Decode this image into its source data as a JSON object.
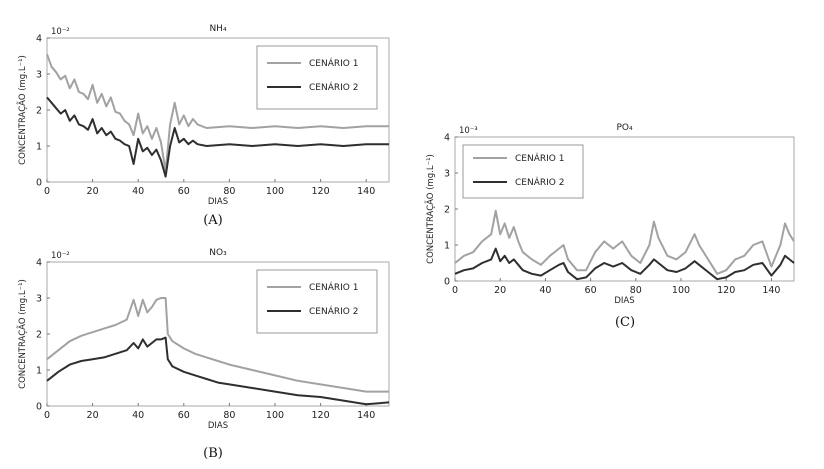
{
  "chart_data": [
    {
      "type": "line",
      "title": "NH₄",
      "caption": "(A)",
      "xlabel": "DIAS",
      "ylabel": "CONCENTRAÇÃO (mg.L⁻¹)",
      "multiplier": "10⁻²",
      "xlim": [
        0,
        150
      ],
      "ylim": [
        0,
        4
      ],
      "xticks": [
        "0",
        "20",
        "40",
        "60",
        "80",
        "100",
        "120",
        "140"
      ],
      "yticks": [
        "0",
        "1",
        "2",
        "3",
        "4"
      ],
      "legend": "top-right",
      "series": [
        {
          "name": "CENÁRIO 1",
          "color": "#a2a2a2",
          "points": [
            [
              0,
              3.55
            ],
            [
              2,
              3.2
            ],
            [
              4,
              3.05
            ],
            [
              6,
              2.85
            ],
            [
              8,
              2.95
            ],
            [
              10,
              2.6
            ],
            [
              12,
              2.85
            ],
            [
              14,
              2.5
            ],
            [
              16,
              2.45
            ],
            [
              18,
              2.3
            ],
            [
              20,
              2.7
            ],
            [
              22,
              2.2
            ],
            [
              24,
              2.45
            ],
            [
              26,
              2.1
            ],
            [
              28,
              2.35
            ],
            [
              30,
              1.95
            ],
            [
              32,
              1.9
            ],
            [
              34,
              1.7
            ],
            [
              36,
              1.6
            ],
            [
              38,
              1.3
            ],
            [
              40,
              1.9
            ],
            [
              42,
              1.35
            ],
            [
              44,
              1.55
            ],
            [
              46,
              1.2
            ],
            [
              48,
              1.5
            ],
            [
              50,
              1.1
            ],
            [
              52,
              0.3
            ],
            [
              54,
              1.6
            ],
            [
              56,
              2.2
            ],
            [
              58,
              1.6
            ],
            [
              60,
              1.85
            ],
            [
              62,
              1.55
            ],
            [
              64,
              1.75
            ],
            [
              66,
              1.6
            ],
            [
              70,
              1.5
            ],
            [
              80,
              1.55
            ],
            [
              90,
              1.5
            ],
            [
              100,
              1.55
            ],
            [
              110,
              1.5
            ],
            [
              120,
              1.55
            ],
            [
              130,
              1.5
            ],
            [
              140,
              1.55
            ],
            [
              150,
              1.55
            ]
          ]
        },
        {
          "name": "CENÁRIO 2",
          "color": "#2f2f2f",
          "points": [
            [
              0,
              2.35
            ],
            [
              2,
              2.2
            ],
            [
              4,
              2.05
            ],
            [
              6,
              1.9
            ],
            [
              8,
              2.0
            ],
            [
              10,
              1.7
            ],
            [
              12,
              1.85
            ],
            [
              14,
              1.6
            ],
            [
              16,
              1.55
            ],
            [
              18,
              1.45
            ],
            [
              20,
              1.75
            ],
            [
              22,
              1.35
            ],
            [
              24,
              1.5
            ],
            [
              26,
              1.3
            ],
            [
              28,
              1.4
            ],
            [
              30,
              1.2
            ],
            [
              32,
              1.15
            ],
            [
              34,
              1.05
            ],
            [
              36,
              1.0
            ],
            [
              38,
              0.5
            ],
            [
              40,
              1.2
            ],
            [
              42,
              0.85
            ],
            [
              44,
              0.95
            ],
            [
              46,
              0.75
            ],
            [
              48,
              0.9
            ],
            [
              50,
              0.6
            ],
            [
              52,
              0.15
            ],
            [
              54,
              1.0
            ],
            [
              56,
              1.5
            ],
            [
              58,
              1.1
            ],
            [
              60,
              1.2
            ],
            [
              62,
              1.05
            ],
            [
              64,
              1.15
            ],
            [
              66,
              1.05
            ],
            [
              70,
              1.0
            ],
            [
              80,
              1.05
            ],
            [
              90,
              1.0
            ],
            [
              100,
              1.05
            ],
            [
              110,
              1.0
            ],
            [
              120,
              1.05
            ],
            [
              130,
              1.0
            ],
            [
              140,
              1.05
            ],
            [
              150,
              1.05
            ]
          ]
        }
      ]
    },
    {
      "type": "line",
      "title": "NO₃",
      "caption": "(B)",
      "xlabel": "DIAS",
      "ylabel": "CONCENTRAÇÃO (mg.L⁻¹)",
      "multiplier": "10⁻²",
      "xlim": [
        0,
        150
      ],
      "ylim": [
        0,
        4
      ],
      "xticks": [
        "0",
        "20",
        "40",
        "60",
        "80",
        "100",
        "120",
        "140"
      ],
      "yticks": [
        "0",
        "1",
        "2",
        "3",
        "4"
      ],
      "legend": "top-right",
      "series": [
        {
          "name": "CENÁRIO 1",
          "color": "#a2a2a2",
          "points": [
            [
              0,
              1.3
            ],
            [
              5,
              1.55
            ],
            [
              10,
              1.8
            ],
            [
              15,
              1.95
            ],
            [
              20,
              2.05
            ],
            [
              25,
              2.15
            ],
            [
              30,
              2.25
            ],
            [
              35,
              2.4
            ],
            [
              38,
              2.95
            ],
            [
              40,
              2.5
            ],
            [
              42,
              2.95
            ],
            [
              44,
              2.6
            ],
            [
              46,
              2.75
            ],
            [
              48,
              2.95
            ],
            [
              50,
              3.0
            ],
            [
              52,
              3.0
            ],
            [
              53,
              2.0
            ],
            [
              55,
              1.8
            ],
            [
              60,
              1.6
            ],
            [
              65,
              1.45
            ],
            [
              70,
              1.35
            ],
            [
              75,
              1.25
            ],
            [
              80,
              1.15
            ],
            [
              90,
              1.0
            ],
            [
              100,
              0.85
            ],
            [
              110,
              0.7
            ],
            [
              120,
              0.6
            ],
            [
              130,
              0.5
            ],
            [
              140,
              0.4
            ],
            [
              150,
              0.4
            ]
          ]
        },
        {
          "name": "CENÁRIO 2",
          "color": "#2f2f2f",
          "points": [
            [
              0,
              0.7
            ],
            [
              5,
              0.95
            ],
            [
              10,
              1.15
            ],
            [
              15,
              1.25
            ],
            [
              20,
              1.3
            ],
            [
              25,
              1.35
            ],
            [
              30,
              1.45
            ],
            [
              35,
              1.55
            ],
            [
              38,
              1.75
            ],
            [
              40,
              1.6
            ],
            [
              42,
              1.85
            ],
            [
              44,
              1.65
            ],
            [
              46,
              1.75
            ],
            [
              48,
              1.85
            ],
            [
              50,
              1.85
            ],
            [
              52,
              1.9
            ],
            [
              53,
              1.3
            ],
            [
              55,
              1.1
            ],
            [
              60,
              0.95
            ],
            [
              65,
              0.85
            ],
            [
              70,
              0.75
            ],
            [
              75,
              0.65
            ],
            [
              80,
              0.6
            ],
            [
              90,
              0.5
            ],
            [
              100,
              0.4
            ],
            [
              110,
              0.3
            ],
            [
              120,
              0.25
            ],
            [
              130,
              0.15
            ],
            [
              140,
              0.05
            ],
            [
              150,
              0.1
            ]
          ]
        }
      ]
    },
    {
      "type": "line",
      "title": "PO₄",
      "caption": "(C)",
      "xlabel": "DIAS",
      "ylabel": "CONCENTRAÇÃO (mg.L⁻¹)",
      "multiplier": "10⁻³",
      "xlim": [
        0,
        150
      ],
      "ylim": [
        0,
        4
      ],
      "xticks": [
        "0",
        "20",
        "40",
        "60",
        "80",
        "100",
        "120",
        "140"
      ],
      "yticks": [
        "0",
        "1",
        "2",
        "3",
        "4"
      ],
      "legend": "top-left",
      "series": [
        {
          "name": "CENÁRIO 1",
          "color": "#a2a2a2",
          "points": [
            [
              0,
              0.5
            ],
            [
              4,
              0.7
            ],
            [
              8,
              0.8
            ],
            [
              12,
              1.1
            ],
            [
              16,
              1.3
            ],
            [
              18,
              1.95
            ],
            [
              20,
              1.3
            ],
            [
              22,
              1.6
            ],
            [
              24,
              1.2
            ],
            [
              26,
              1.5
            ],
            [
              28,
              1.1
            ],
            [
              30,
              0.8
            ],
            [
              34,
              0.6
            ],
            [
              38,
              0.45
            ],
            [
              42,
              0.7
            ],
            [
              46,
              0.9
            ],
            [
              48,
              1.0
            ],
            [
              50,
              0.6
            ],
            [
              54,
              0.3
            ],
            [
              58,
              0.3
            ],
            [
              62,
              0.8
            ],
            [
              66,
              1.1
            ],
            [
              70,
              0.9
            ],
            [
              74,
              1.1
            ],
            [
              78,
              0.7
            ],
            [
              82,
              0.5
            ],
            [
              86,
              1.0
            ],
            [
              88,
              1.65
            ],
            [
              90,
              1.2
            ],
            [
              94,
              0.7
            ],
            [
              98,
              0.6
            ],
            [
              102,
              0.8
            ],
            [
              106,
              1.3
            ],
            [
              108,
              1.0
            ],
            [
              112,
              0.6
            ],
            [
              116,
              0.2
            ],
            [
              120,
              0.3
            ],
            [
              124,
              0.6
            ],
            [
              128,
              0.7
            ],
            [
              132,
              1.0
            ],
            [
              136,
              1.1
            ],
            [
              140,
              0.4
            ],
            [
              144,
              1.0
            ],
            [
              146,
              1.6
            ],
            [
              148,
              1.3
            ],
            [
              150,
              1.1
            ]
          ]
        },
        {
          "name": "CENÁRIO 2",
          "color": "#2f2f2f",
          "points": [
            [
              0,
              0.2
            ],
            [
              4,
              0.3
            ],
            [
              8,
              0.35
            ],
            [
              12,
              0.5
            ],
            [
              16,
              0.6
            ],
            [
              18,
              0.9
            ],
            [
              20,
              0.55
            ],
            [
              22,
              0.7
            ],
            [
              24,
              0.5
            ],
            [
              26,
              0.6
            ],
            [
              28,
              0.45
            ],
            [
              30,
              0.3
            ],
            [
              34,
              0.2
            ],
            [
              38,
              0.15
            ],
            [
              42,
              0.3
            ],
            [
              46,
              0.45
            ],
            [
              48,
              0.5
            ],
            [
              50,
              0.25
            ],
            [
              54,
              0.05
            ],
            [
              58,
              0.1
            ],
            [
              62,
              0.35
            ],
            [
              66,
              0.5
            ],
            [
              70,
              0.4
            ],
            [
              74,
              0.5
            ],
            [
              78,
              0.3
            ],
            [
              82,
              0.2
            ],
            [
              86,
              0.45
            ],
            [
              88,
              0.6
            ],
            [
              90,
              0.5
            ],
            [
              94,
              0.3
            ],
            [
              98,
              0.25
            ],
            [
              102,
              0.35
            ],
            [
              106,
              0.55
            ],
            [
              108,
              0.45
            ],
            [
              112,
              0.25
            ],
            [
              116,
              0.05
            ],
            [
              120,
              0.1
            ],
            [
              124,
              0.25
            ],
            [
              128,
              0.3
            ],
            [
              132,
              0.45
            ],
            [
              136,
              0.5
            ],
            [
              140,
              0.15
            ],
            [
              144,
              0.45
            ],
            [
              146,
              0.7
            ],
            [
              148,
              0.6
            ],
            [
              150,
              0.5
            ]
          ]
        }
      ]
    }
  ]
}
